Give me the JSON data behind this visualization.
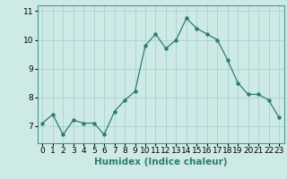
{
  "x": [
    0,
    1,
    2,
    3,
    4,
    5,
    6,
    7,
    8,
    9,
    10,
    11,
    12,
    13,
    14,
    15,
    16,
    17,
    18,
    19,
    20,
    21,
    22,
    23
  ],
  "y": [
    7.1,
    7.4,
    6.7,
    7.2,
    7.1,
    7.1,
    6.7,
    7.5,
    7.9,
    8.2,
    9.8,
    10.2,
    9.7,
    10.0,
    10.75,
    10.4,
    10.2,
    10.0,
    9.3,
    8.5,
    8.1,
    8.1,
    7.9,
    7.3
  ],
  "line_color": "#2d7d6f",
  "marker_color": "#2d7d6f",
  "bg_color": "#ceeae7",
  "grid_color": "#b0d4d0",
  "xlabel": "Humidex (Indice chaleur)",
  "xlim": [
    -0.5,
    23.5
  ],
  "ylim": [
    6.4,
    11.2
  ],
  "yticks": [
    7,
    8,
    9,
    10,
    11
  ],
  "xtick_labels": [
    "0",
    "1",
    "2",
    "3",
    "4",
    "5",
    "6",
    "7",
    "8",
    "9",
    "10",
    "11",
    "12",
    "13",
    "14",
    "15",
    "16",
    "17",
    "18",
    "19",
    "20",
    "21",
    "22",
    "23"
  ],
  "xlabel_fontsize": 7.5,
  "tick_fontsize": 6.5
}
